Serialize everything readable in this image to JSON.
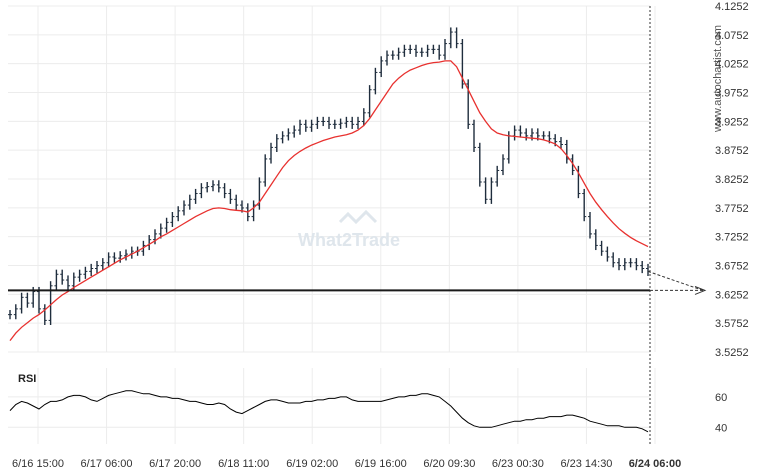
{
  "watermark": "What2Trade",
  "brand": "www.autochartist.com",
  "chart_data": [
    {
      "type": "candlestick",
      "title": "",
      "ylim": [
        3.5252,
        4.1252
      ],
      "y_ticks": [
        "4.1252",
        "4.0752",
        "4.0252",
        "3.9752",
        "3.9252",
        "3.8752",
        "3.8252",
        "3.7752",
        "3.7252",
        "3.6752",
        "3.6252",
        "3.5752",
        "3.5252"
      ],
      "x_ticks": [
        "6/16 15:00",
        "6/17 06:00",
        "6/17 20:00",
        "6/18 11:00",
        "6/19 02:00",
        "6/19 16:00",
        "6/20 09:30",
        "6/23 00:30",
        "6/23 14:30",
        "6/24 06:00"
      ],
      "grid": true,
      "support_level": 3.632,
      "series": [
        {
          "kind": "price",
          "color": "#1f2d3d",
          "values": [
            3.59,
            3.6,
            3.62,
            3.61,
            3.63,
            3.6,
            3.58,
            3.64,
            3.66,
            3.65,
            3.64,
            3.655,
            3.66,
            3.665,
            3.67,
            3.675,
            3.68,
            3.69,
            3.688,
            3.692,
            3.695,
            3.7,
            3.7,
            3.71,
            3.72,
            3.73,
            3.74,
            3.75,
            3.76,
            3.77,
            3.78,
            3.79,
            3.8,
            3.81,
            3.812,
            3.815,
            3.81,
            3.8,
            3.79,
            3.78,
            3.775,
            3.76,
            3.78,
            3.82,
            3.86,
            3.88,
            3.895,
            3.9,
            3.905,
            3.91,
            3.92,
            3.915,
            3.92,
            3.925,
            3.925,
            3.92,
            3.92,
            3.922,
            3.925,
            3.92,
            3.925,
            3.94,
            3.98,
            4.01,
            4.03,
            4.04,
            4.04,
            4.045,
            4.05,
            4.05,
            4.045,
            4.045,
            4.05,
            4.05,
            4.04,
            4.06,
            4.08,
            4.06,
            3.99,
            3.92,
            3.88,
            3.82,
            3.79,
            3.82,
            3.84,
            3.86,
            3.9,
            3.91,
            3.905,
            3.9,
            3.905,
            3.9,
            3.9,
            3.895,
            3.89,
            3.885,
            3.86,
            3.84,
            3.8,
            3.76,
            3.73,
            3.71,
            3.7,
            3.69,
            3.68,
            3.675,
            3.68,
            3.68,
            3.675,
            3.67,
            3.665
          ]
        },
        {
          "kind": "moving_average",
          "color": "#e8312f",
          "values": [
            3.545,
            3.558,
            3.568,
            3.576,
            3.584,
            3.59,
            3.598,
            3.607,
            3.616,
            3.624,
            3.63,
            3.637,
            3.643,
            3.649,
            3.655,
            3.661,
            3.667,
            3.673,
            3.679,
            3.685,
            3.69,
            3.695,
            3.7,
            3.706,
            3.712,
            3.718,
            3.725,
            3.73,
            3.736,
            3.742,
            3.748,
            3.754,
            3.76,
            3.765,
            3.77,
            3.774,
            3.775,
            3.774,
            3.772,
            3.771,
            3.77,
            3.768,
            3.775,
            3.785,
            3.8,
            3.815,
            3.83,
            3.845,
            3.857,
            3.866,
            3.873,
            3.879,
            3.884,
            3.888,
            3.892,
            3.895,
            3.898,
            3.9,
            3.902,
            3.905,
            3.91,
            3.918,
            3.93,
            3.945,
            3.96,
            3.975,
            3.99,
            4.0,
            4.008,
            4.014,
            4.018,
            4.022,
            4.025,
            4.027,
            4.028,
            4.03,
            4.03,
            4.02,
            4.0,
            3.98,
            3.96,
            3.94,
            3.925,
            3.912,
            3.905,
            3.902,
            3.9,
            3.899,
            3.898,
            3.897,
            3.896,
            3.895,
            3.893,
            3.89,
            3.886,
            3.878,
            3.866,
            3.852,
            3.836,
            3.818,
            3.8,
            3.785,
            3.772,
            3.76,
            3.749,
            3.739,
            3.731,
            3.724,
            3.718,
            3.713,
            3.708
          ]
        }
      ]
    },
    {
      "type": "line",
      "title": "RSI",
      "ylim": [
        29,
        79
      ],
      "y_ticks": [
        "60",
        "40"
      ],
      "series": [
        {
          "name": "RSI",
          "color": "#000000",
          "values": [
            51,
            55,
            57,
            56,
            54,
            52,
            55,
            57,
            57,
            58,
            60,
            61,
            61,
            60,
            58,
            57,
            59,
            61,
            62,
            63,
            64,
            64,
            63,
            62,
            62,
            61,
            60,
            60,
            59,
            59,
            58,
            57,
            57,
            56,
            55,
            55,
            56,
            55,
            52,
            50,
            49,
            51,
            53,
            55,
            57,
            58,
            58,
            57,
            56,
            56,
            56,
            57,
            57,
            58,
            58,
            59,
            59,
            60,
            60,
            58,
            57,
            57,
            57,
            57,
            57,
            58,
            59,
            60,
            60,
            61,
            61,
            62,
            62,
            61,
            60,
            57,
            54,
            50,
            46,
            43,
            41,
            40,
            40,
            40,
            41,
            42,
            43,
            44,
            44,
            45,
            45,
            46,
            46,
            47,
            47,
            47,
            48,
            48,
            47,
            46,
            44,
            43,
            42,
            41,
            41,
            41,
            40,
            40,
            40,
            39,
            37
          ]
        }
      ]
    }
  ]
}
